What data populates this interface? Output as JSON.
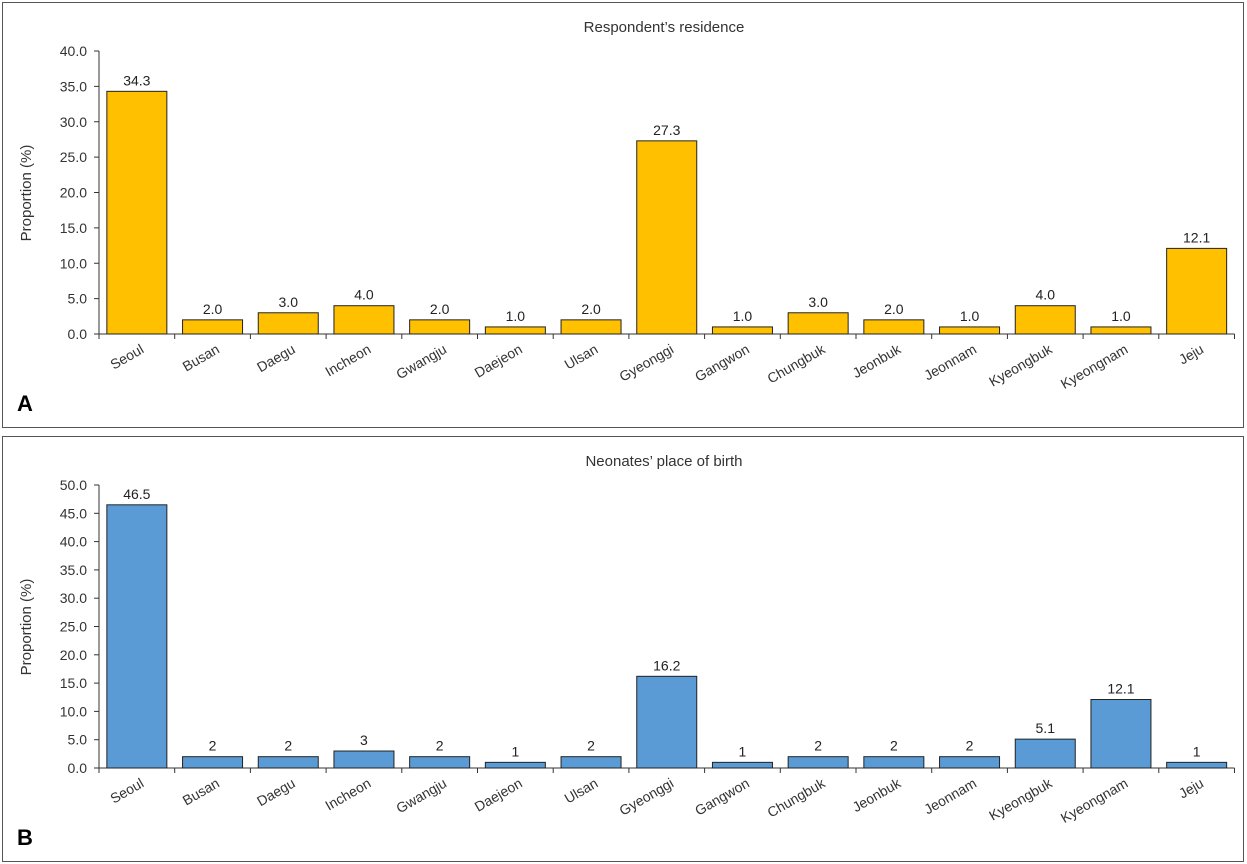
{
  "chart_data": [
    {
      "type": "bar",
      "panel_label": "A",
      "title": "Respondent’s residence",
      "ylabel": "Proportion (%)",
      "xlabel": "",
      "ylim": [
        0,
        40
      ],
      "ytick_step": 5,
      "yticks": [
        "0.0",
        "5.0",
        "10.0",
        "15.0",
        "20.0",
        "25.0",
        "30.0",
        "35.0",
        "40.0"
      ],
      "color": "#FFC000",
      "categories": [
        "Seoul",
        "Busan",
        "Daegu",
        "Incheon",
        "Gwangju",
        "Daejeon",
        "Ulsan",
        "Gyeonggi",
        "Gangwon",
        "Chungbuk",
        "Jeonbuk",
        "Jeonnam",
        "Kyeongbuk",
        "Kyeongnam",
        "Jeju"
      ],
      "values": [
        34.3,
        2.0,
        3.0,
        4.0,
        2.0,
        1.0,
        2.0,
        27.3,
        1.0,
        3.0,
        2.0,
        1.0,
        4.0,
        1.0,
        12.1
      ],
      "value_labels": [
        "34.3",
        "2.0",
        "3.0",
        "4.0",
        "2.0",
        "1.0",
        "2.0",
        "27.3",
        "1.0",
        "3.0",
        "2.0",
        "1.0",
        "4.0",
        "1.0",
        "12.1"
      ]
    },
    {
      "type": "bar",
      "panel_label": "B",
      "title": "Neonates’ place of birth",
      "ylabel": "Proportion (%)",
      "xlabel": "",
      "ylim": [
        0,
        50
      ],
      "ytick_step": 5,
      "yticks": [
        "0.0",
        "5.0",
        "10.0",
        "15.0",
        "20.0",
        "25.0",
        "30.0",
        "35.0",
        "40.0",
        "45.0",
        "50.0"
      ],
      "color": "#5B9BD5",
      "categories": [
        "Seoul",
        "Busan",
        "Daegu",
        "Incheon",
        "Gwangju",
        "Daejeon",
        "Ulsan",
        "Gyeonggi",
        "Gangwon",
        "Chungbuk",
        "Jeonbuk",
        "Jeonnam",
        "Kyeongbuk",
        "Kyeongnam",
        "Jeju"
      ],
      "values": [
        46.5,
        2,
        2,
        3,
        2,
        1,
        2,
        16.2,
        1,
        2,
        2,
        2,
        5.1,
        12.1,
        1
      ],
      "value_labels": [
        "46.5",
        "2",
        "2",
        "3",
        "2",
        "1",
        "2",
        "16.2",
        "1",
        "2",
        "2",
        "2",
        "5.1",
        "12.1",
        "1"
      ]
    }
  ]
}
